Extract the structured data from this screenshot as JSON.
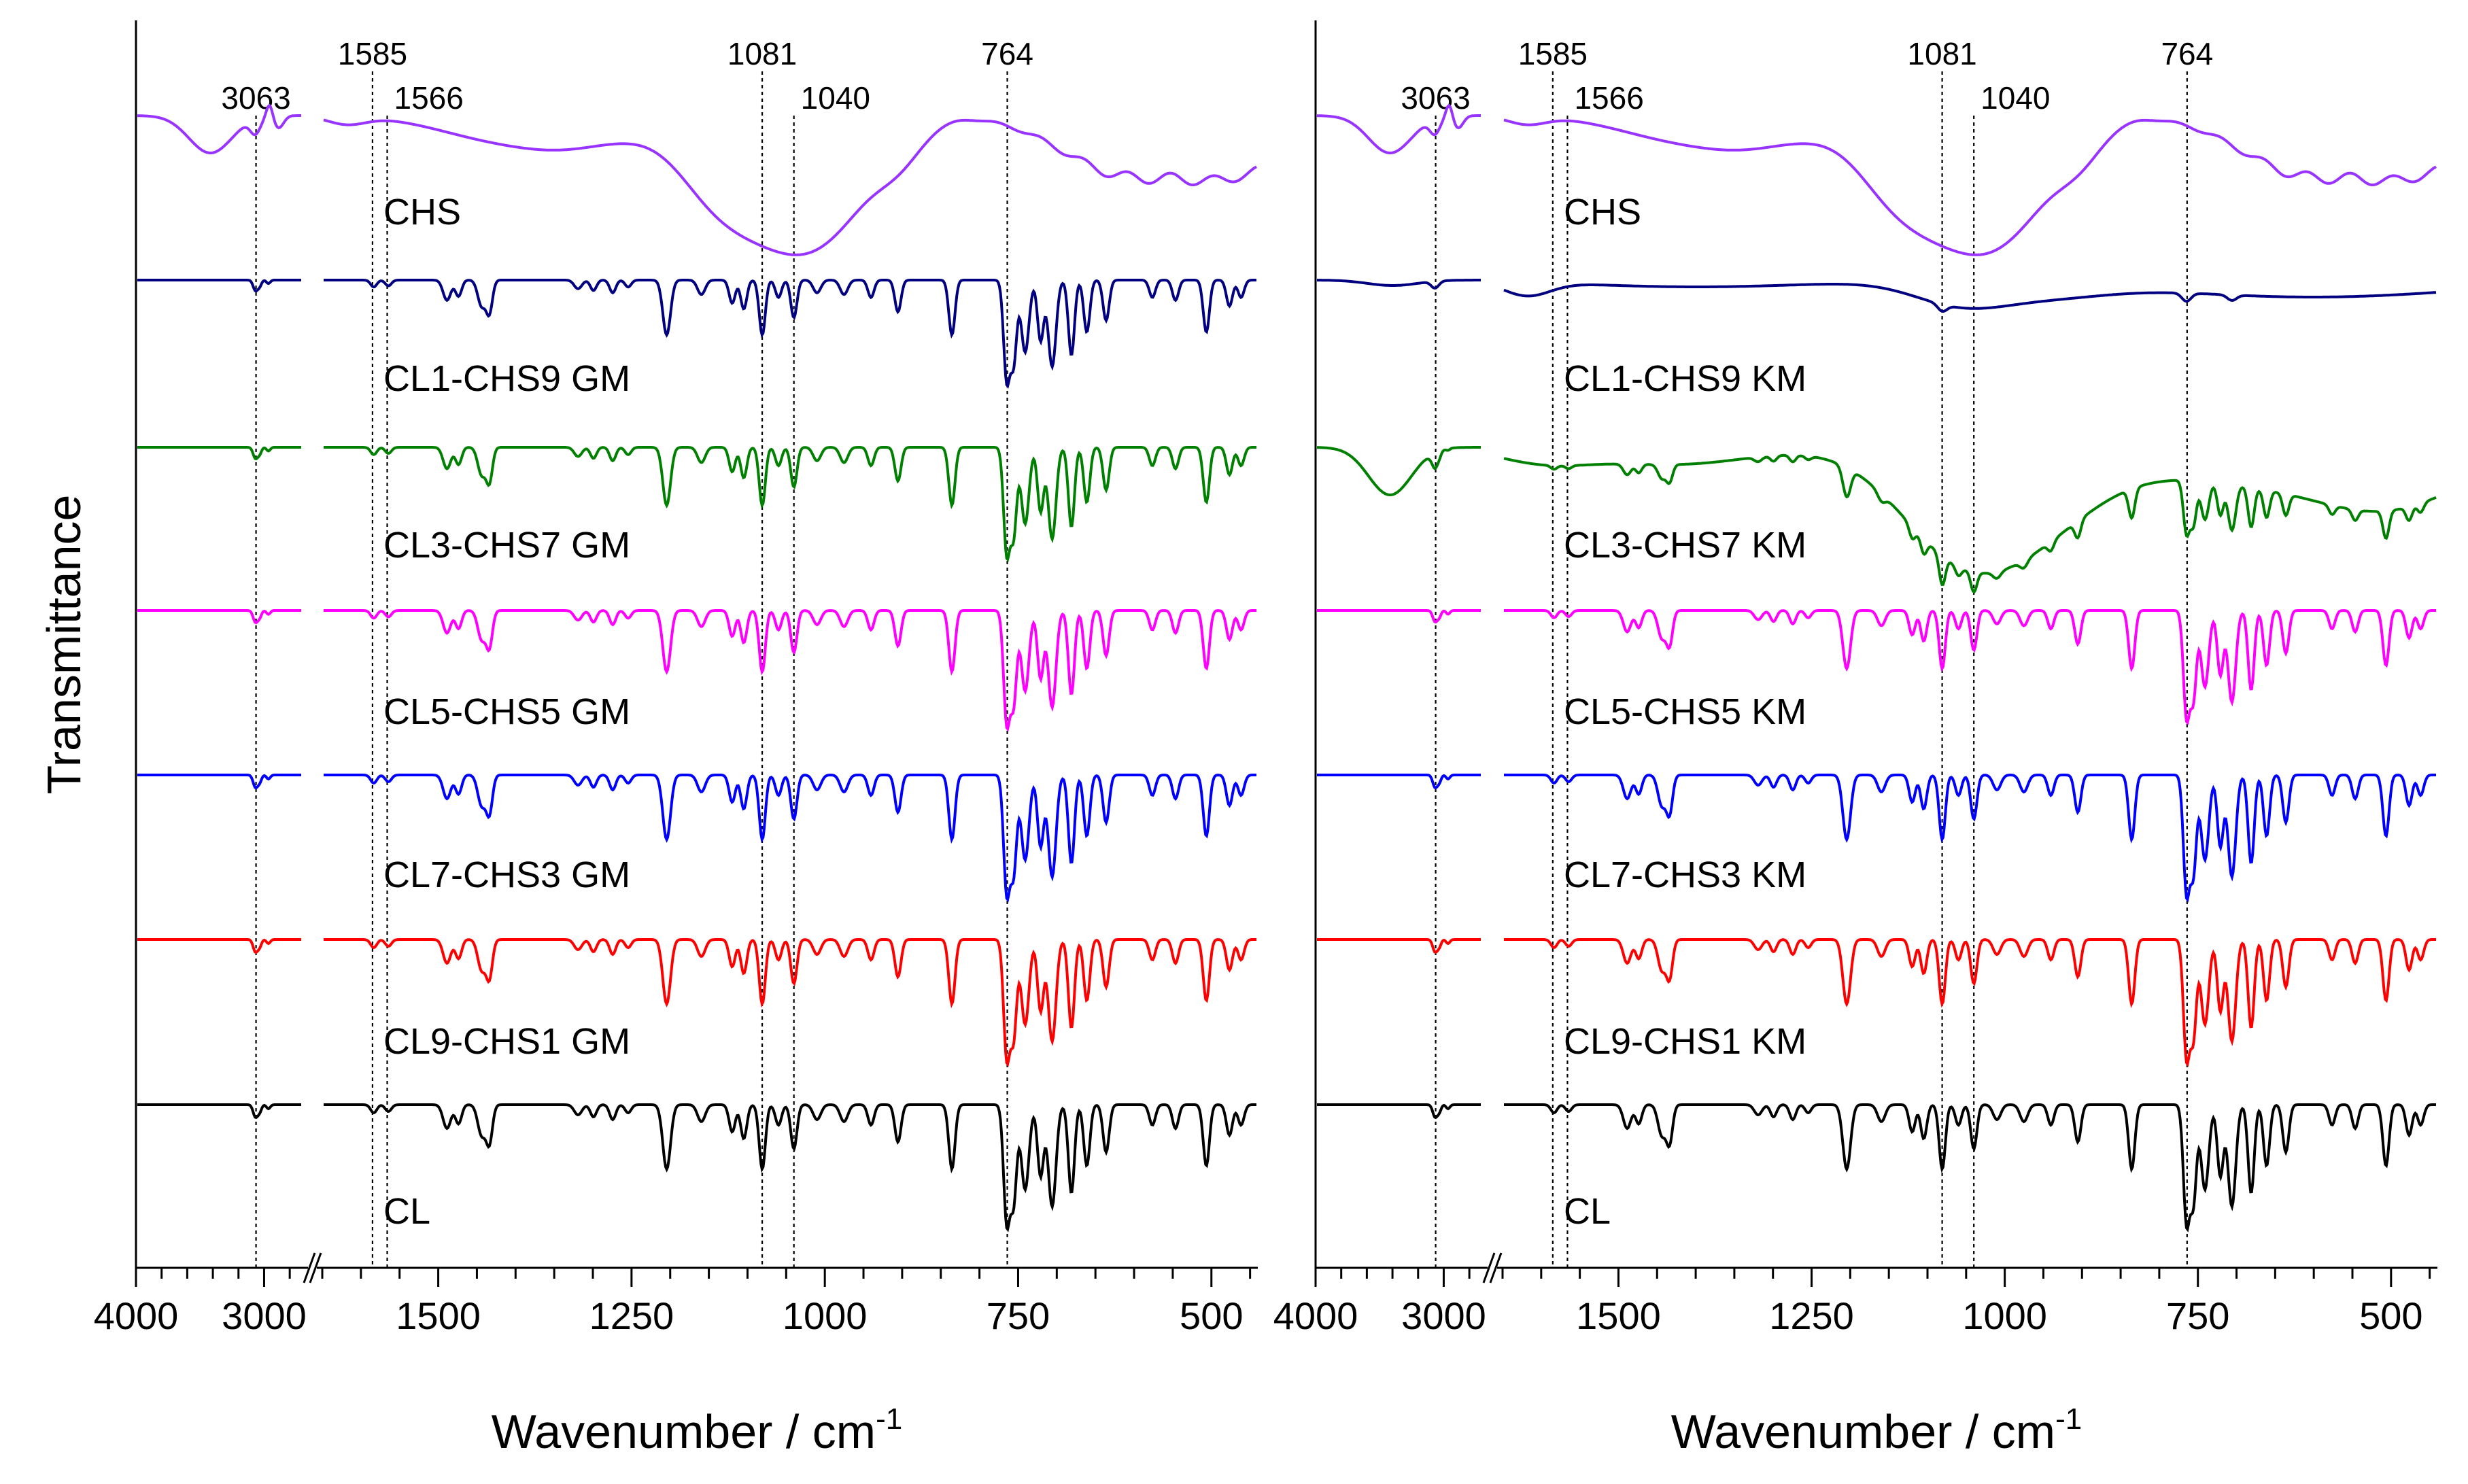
{
  "chart_data": {
    "type": "line",
    "ylabel": "Transmittance",
    "colors": {
      "CHS": "#9933ff",
      "CL1-CHS9": "#000080",
      "CL3-CHS7": "#008000",
      "CL5-CHS5": "#ff00ff",
      "CL7-CHS3": "#0000ff",
      "CL9-CHS1": "#ff0000",
      "CL": "#000000"
    },
    "panels": [
      {
        "id": "GM",
        "xlabel": "Wavenumber / cm",
        "xlabel_sup": "-1",
        "high_range": [
          2700,
          4000
        ],
        "low_range": [
          440,
          1650
        ],
        "high_ticks": [
          {
            "value": 4000,
            "label": "4000"
          },
          {
            "value": 3000,
            "label": "3000"
          }
        ],
        "low_ticks": [
          {
            "value": 1500,
            "label": "1500"
          },
          {
            "value": 1250,
            "label": "1250"
          },
          {
            "value": 1000,
            "label": "1000"
          },
          {
            "value": 750,
            "label": "750"
          },
          {
            "value": 500,
            "label": "500"
          }
        ],
        "peaks": [
          {
            "label": "3063",
            "value": 3063
          },
          {
            "label": "1585",
            "value": 1585
          },
          {
            "label": "1566",
            "value": 1566
          },
          {
            "label": "1081",
            "value": 1081
          },
          {
            "label": "1040",
            "value": 1040
          },
          {
            "label": "764",
            "value": 764
          }
        ],
        "series": [
          {
            "name": "CHS",
            "label": "CHS",
            "type": "chs"
          },
          {
            "name": "CL1-CHS9",
            "label": "CL1-CHS9 GM",
            "type": "mix",
            "strength": 0.85
          },
          {
            "name": "CL3-CHS7",
            "label": "CL3-CHS7 GM",
            "type": "mix",
            "strength": 0.9
          },
          {
            "name": "CL5-CHS5",
            "label": "CL5-CHS5 GM",
            "type": "mix",
            "strength": 0.95
          },
          {
            "name": "CL7-CHS3",
            "label": "CL7-CHS3 GM",
            "type": "mix",
            "strength": 1.0
          },
          {
            "name": "CL9-CHS1",
            "label": "CL9-CHS1 GM",
            "type": "mix",
            "strength": 1.0
          },
          {
            "name": "CL",
            "label": "CL",
            "type": "mix",
            "strength": 1.0
          }
        ]
      },
      {
        "id": "KM",
        "xlabel": "Wavenumber / cm",
        "xlabel_sup": "-1",
        "high_range": [
          2700,
          4000
        ],
        "low_range": [
          440,
          1650
        ],
        "high_ticks": [
          {
            "value": 4000,
            "label": "4000"
          },
          {
            "value": 3000,
            "label": "3000"
          }
        ],
        "low_ticks": [
          {
            "value": 1500,
            "label": "1500"
          },
          {
            "value": 1250,
            "label": "1250"
          },
          {
            "value": 1000,
            "label": "1000"
          },
          {
            "value": 750,
            "label": "750"
          },
          {
            "value": 500,
            "label": "500"
          }
        ],
        "peaks": [
          {
            "label": "3063",
            "value": 3063
          },
          {
            "label": "1585",
            "value": 1585
          },
          {
            "label": "1566",
            "value": 1566
          },
          {
            "label": "1081",
            "value": 1081
          },
          {
            "label": "1040",
            "value": 1040
          },
          {
            "label": "764",
            "value": 764
          }
        ],
        "series": [
          {
            "name": "CHS",
            "label": "CHS",
            "type": "chs"
          },
          {
            "name": "CL1-CHS9",
            "label": "CL1-CHS9 KM",
            "type": "flat"
          },
          {
            "name": "CL3-CHS7",
            "label": "CL3-CHS7 KM",
            "type": "km37",
            "strength": 0.45
          },
          {
            "name": "CL5-CHS5",
            "label": "CL5-CHS5 KM",
            "type": "mix",
            "strength": 0.9
          },
          {
            "name": "CL7-CHS3",
            "label": "CL7-CHS3 KM",
            "type": "mix",
            "strength": 1.0
          },
          {
            "name": "CL9-CHS1",
            "label": "CL9-CHS1 KM",
            "type": "mix",
            "strength": 1.0
          },
          {
            "name": "CL",
            "label": "CL",
            "type": "mix",
            "strength": 1.0
          }
        ]
      }
    ]
  }
}
